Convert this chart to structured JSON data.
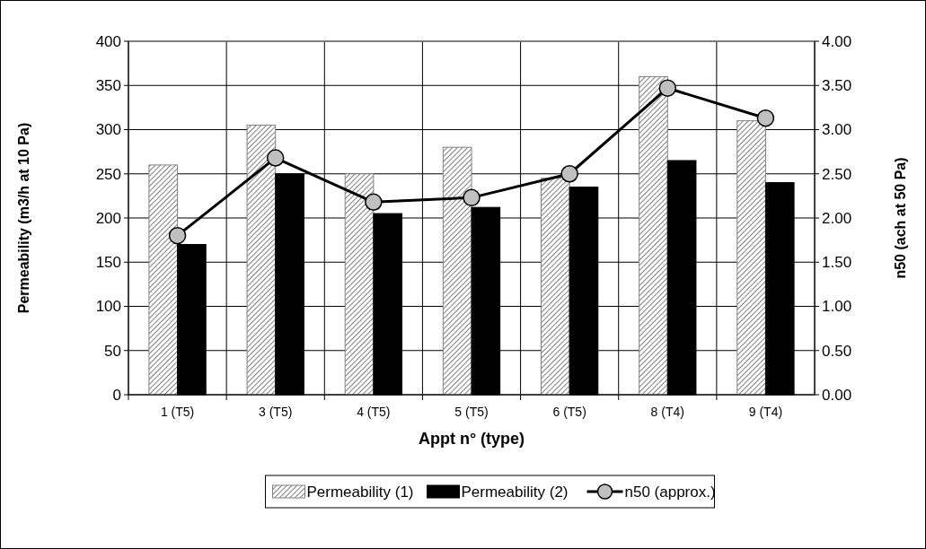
{
  "chart_data": {
    "type": "bar",
    "xlabel": "Appt n° (type)",
    "ylabel": "Permeability (m3/h at 10 Pa)",
    "y2label": "n50 (ach at 50 Pa)",
    "categories": [
      "1 (T5)",
      "3 (T5)",
      "4 (T5)",
      "5 (T5)",
      "6 (T5)",
      "8 (T4)",
      "9 (T4)"
    ],
    "series": [
      {
        "name": "Permeability (1)",
        "color": "#808080",
        "values": [
          260,
          305,
          250,
          280,
          245,
          360,
          310
        ]
      },
      {
        "name": "Permeability (2)",
        "color": "#000000",
        "values": [
          170,
          250,
          205,
          212,
          235,
          265,
          240
        ]
      },
      {
        "name": "n50 (approx.)",
        "type": "line",
        "axis": "y2",
        "color": "#000000",
        "marker": "circle",
        "values": [
          1.8,
          2.68,
          2.18,
          2.23,
          2.5,
          3.47,
          3.13
        ]
      }
    ],
    "ylim": [
      0,
      400
    ],
    "yticks": [
      0,
      50,
      100,
      150,
      200,
      250,
      300,
      350,
      400
    ],
    "y2lim": [
      0,
      4
    ],
    "y2ticks": [
      {
        "value": 0,
        "label": "0.00"
      },
      {
        "value": 0.5,
        "label": "0.50"
      },
      {
        "value": 1,
        "label": "1.00"
      },
      {
        "value": 1.5,
        "label": "1.50"
      },
      {
        "value": 2,
        "label": "2.00"
      },
      {
        "value": 2.5,
        "label": "2.50"
      },
      {
        "value": 3,
        "label": "3.00"
      },
      {
        "value": 3.5,
        "label": "3.50"
      },
      {
        "value": 4,
        "label": "4.00"
      }
    ],
    "grid": true,
    "legend": "bottom"
  }
}
